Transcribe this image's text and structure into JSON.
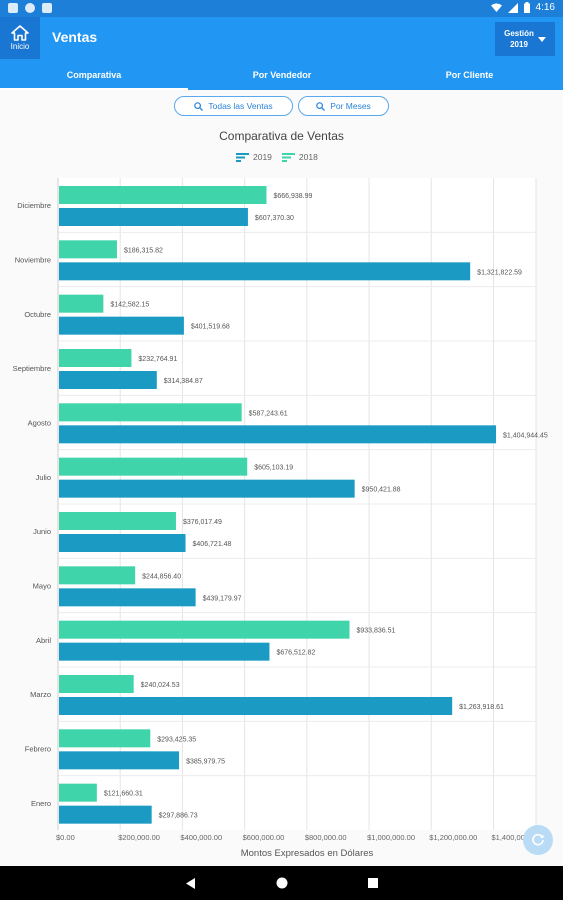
{
  "status_bar": {
    "time": "4:16"
  },
  "app_bar": {
    "home_label": "Inicio",
    "title": "Ventas",
    "gestion_label": "Gestión",
    "gestion_year": "2019"
  },
  "tabs": [
    {
      "label": "Comparativa",
      "active": true
    },
    {
      "label": "Por Vendedor",
      "active": false
    },
    {
      "label": "Por Cliente",
      "active": false
    }
  ],
  "filters": [
    {
      "label": "Todas las Ventas",
      "icon": "search-icon"
    },
    {
      "label": "Por Meses",
      "icon": "search-icon"
    }
  ],
  "colors": {
    "primary": "#2196f3",
    "primary_dark": "#1976d2",
    "series_2019": "#1b9ac4",
    "series_2018": "#3fd4aa"
  },
  "chart_data": {
    "type": "bar",
    "orientation": "horizontal",
    "title": "Comparativa de Ventas",
    "xlabel": "Montos Expresados en Dólares",
    "xlim": [
      0,
      1400000
    ],
    "x_ticks": [
      "$0.00",
      "$200,000.00",
      "$400,000.00",
      "$600,000.00",
      "$800,000.00",
      "$1,000,000.00",
      "$1,200,000.00",
      "$1,400,000.00"
    ],
    "grid": true,
    "legend": [
      "2019",
      "2018"
    ],
    "categories": [
      "Diciembre",
      "Noviembre",
      "Octubre",
      "Septiembre",
      "Agosto",
      "Julio",
      "Junio",
      "Mayo",
      "Abril",
      "Marzo",
      "Febrero",
      "Enero"
    ],
    "series": [
      {
        "name": "2018",
        "values": [
          666938.99,
          186315.82,
          142582.15,
          232764.91,
          587243.61,
          605103.19,
          376017.49,
          244856.4,
          933836.51,
          240024.53,
          293425.35,
          121660.31
        ],
        "labels": [
          "$666,938.99",
          "$186,315.82",
          "$142,582.15",
          "$232,764.91",
          "$587,243.61",
          "$605,103.19",
          "$376,017.49",
          "$244,856.40",
          "$933,836.51",
          "$240,024.53",
          "$293,425.35",
          "$121,660.31"
        ]
      },
      {
        "name": "2019",
        "values": [
          607370.3,
          1321822.59,
          401519.68,
          314384.87,
          1404944.45,
          950421.88,
          406721.48,
          439179.97,
          676512.82,
          1263918.61,
          385979.75,
          297886.73
        ],
        "labels": [
          "$607,370.30",
          "$1,321,822.59",
          "$401,519.68",
          "$314,384.87",
          "$1,404,944.45",
          "$950,421.88",
          "$406,721.48",
          "$439,179.97",
          "$676,512.82",
          "$1,263,918.61",
          "$385,979.75",
          "$297,886.73"
        ]
      }
    ]
  }
}
